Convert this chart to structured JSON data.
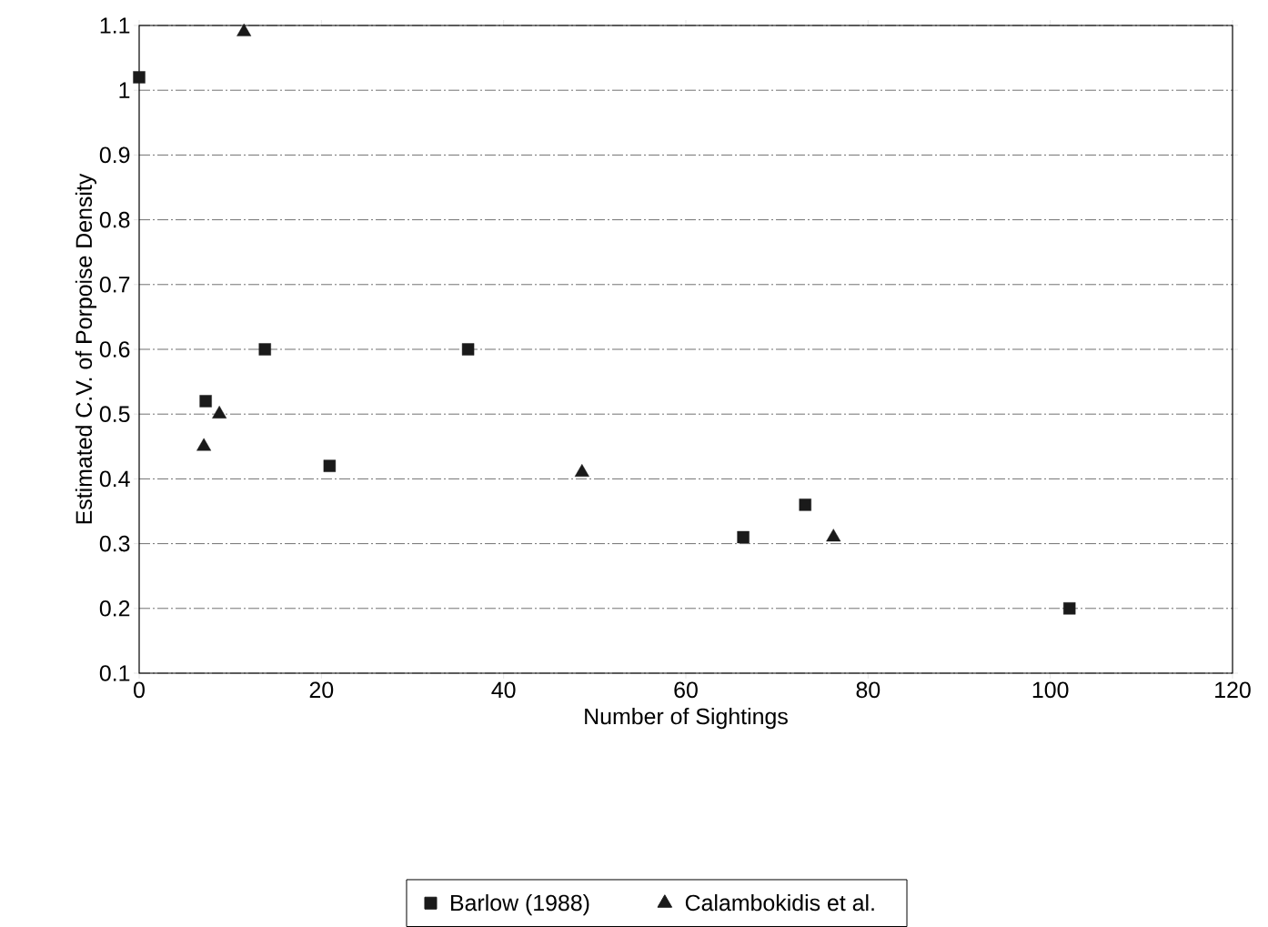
{
  "chart_data": {
    "type": "scatter",
    "xlabel": "Number of Sightings",
    "ylabel": "Estimated C.V. of Porpoise Density",
    "xlim": [
      0,
      120
    ],
    "ylim": [
      0.1,
      1.1
    ],
    "xticks": [
      0,
      20,
      40,
      60,
      80,
      100,
      120
    ],
    "yticks": [
      0.1,
      0.2,
      0.3,
      0.4,
      0.5,
      0.6,
      0.7,
      0.8,
      0.9,
      1,
      1.1
    ],
    "grid": "y",
    "legend": "bottom",
    "series": [
      {
        "name": "Barlow (1988)",
        "color": "#1a1a1a",
        "marker": "square",
        "x": [
          0,
          7.3,
          13.8,
          20.9,
          36.1,
          66.3,
          73.1,
          102.1
        ],
        "values": [
          1.02,
          0.52,
          0.6,
          0.42,
          0.6,
          0.31,
          0.36,
          0.2
        ]
      },
      {
        "name": "Calambokidis et al.",
        "color": "#1a1a1a",
        "marker": "triangle",
        "x": [
          11.5,
          7.1,
          8.8,
          48.6,
          76.2
        ],
        "values": [
          1.09,
          0.45,
          0.5,
          0.41,
          0.31
        ]
      }
    ]
  }
}
